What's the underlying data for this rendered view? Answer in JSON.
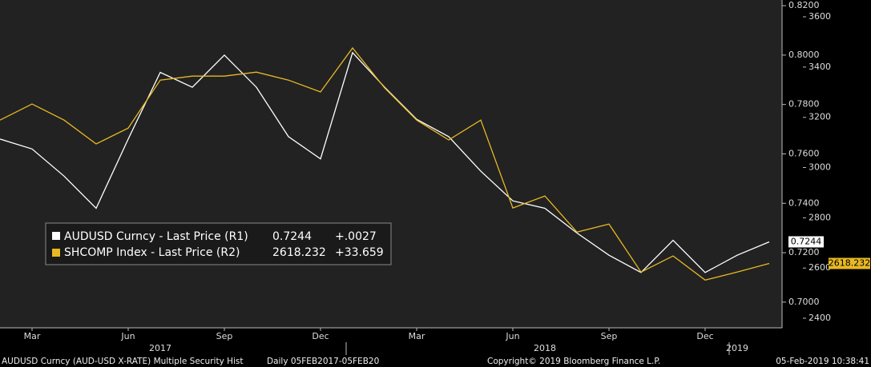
{
  "chart_data": {
    "type": "line",
    "x": [
      "2017-02",
      "2017-03",
      "2017-04",
      "2017-05",
      "2017-06",
      "2017-07",
      "2017-08",
      "2017-09",
      "2017-10",
      "2017-11",
      "2017-12",
      "2018-01",
      "2018-02",
      "2018-03",
      "2018-04",
      "2018-05",
      "2018-06",
      "2018-07",
      "2018-08",
      "2018-09",
      "2018-10",
      "2018-11",
      "2018-12",
      "2019-01",
      "2019-02"
    ],
    "xticks": [
      {
        "value": "2017-03",
        "label": "Mar"
      },
      {
        "value": "2017-06",
        "label": "Jun"
      },
      {
        "value": "2017-09",
        "label": "Sep"
      },
      {
        "value": "2017-12",
        "label": "Dec"
      },
      {
        "value": "2018-03",
        "label": "Mar"
      },
      {
        "value": "2018-06",
        "label": "Jun"
      },
      {
        "value": "2018-09",
        "label": "Sep"
      },
      {
        "value": "2018-12",
        "label": "Dec"
      }
    ],
    "year_ticks": [
      {
        "value": "2017-07",
        "label": "2017"
      },
      {
        "value": "2018-07",
        "label": "2018"
      },
      {
        "value": "2019-01",
        "label": "2019"
      }
    ],
    "ylim": [
      0.6896,
      0.8223
    ],
    "yticks": [
      {
        "value": 0.7,
        "label": "0.7000"
      },
      {
        "value": 0.72,
        "label": "0.7200"
      },
      {
        "value": 0.74,
        "label": "0.7400"
      },
      {
        "value": 0.76,
        "label": "0.7600"
      },
      {
        "value": 0.78,
        "label": "0.7800"
      },
      {
        "value": 0.8,
        "label": "0.8000"
      },
      {
        "value": 0.82,
        "label": "0.8200"
      }
    ],
    "y2lim": [
      2362,
      3667
    ],
    "y2ticks": [
      2400,
      2600,
      2800,
      3000,
      3200,
      3400,
      3600
    ],
    "series": [
      {
        "name": "AUDUSD Curncy - Last Price (R1)",
        "color": "#ffffff",
        "last": 0.7244,
        "change": "+.0027",
        "values": [
          0.766,
          0.762,
          0.751,
          0.738,
          0.766,
          0.793,
          0.787,
          0.8,
          0.787,
          0.767,
          0.758,
          0.801,
          0.787,
          0.774,
          0.767,
          0.753,
          0.741,
          0.738,
          0.728,
          0.719,
          0.712,
          0.725,
          0.712,
          0.719,
          0.7244
        ]
      },
      {
        "name": "SHCOMP Index - Last Price (R2)",
        "color": "#e8b923",
        "axis": "y2",
        "last": 2618.232,
        "change": "+33.659",
        "values": [
          3189,
          3253,
          3189,
          3094,
          3157,
          3348,
          3364,
          3364,
          3380,
          3348,
          3301,
          3476,
          3317,
          3189,
          3110,
          3189,
          2839,
          2887,
          2743,
          2775,
          2584,
          2648,
          2552,
          2584,
          2618.232
        ]
      }
    ],
    "footer": {
      "left": "AUDUSD Curncy (AUD-USD X-RATE) Multiple Security Hist",
      "range": "Daily 05FEB2017-05FEB20",
      "copyright": "Copyright© 2019 Bloomberg Finance L.P.",
      "timestamp": "05-Feb-2019 10:38:41"
    }
  }
}
